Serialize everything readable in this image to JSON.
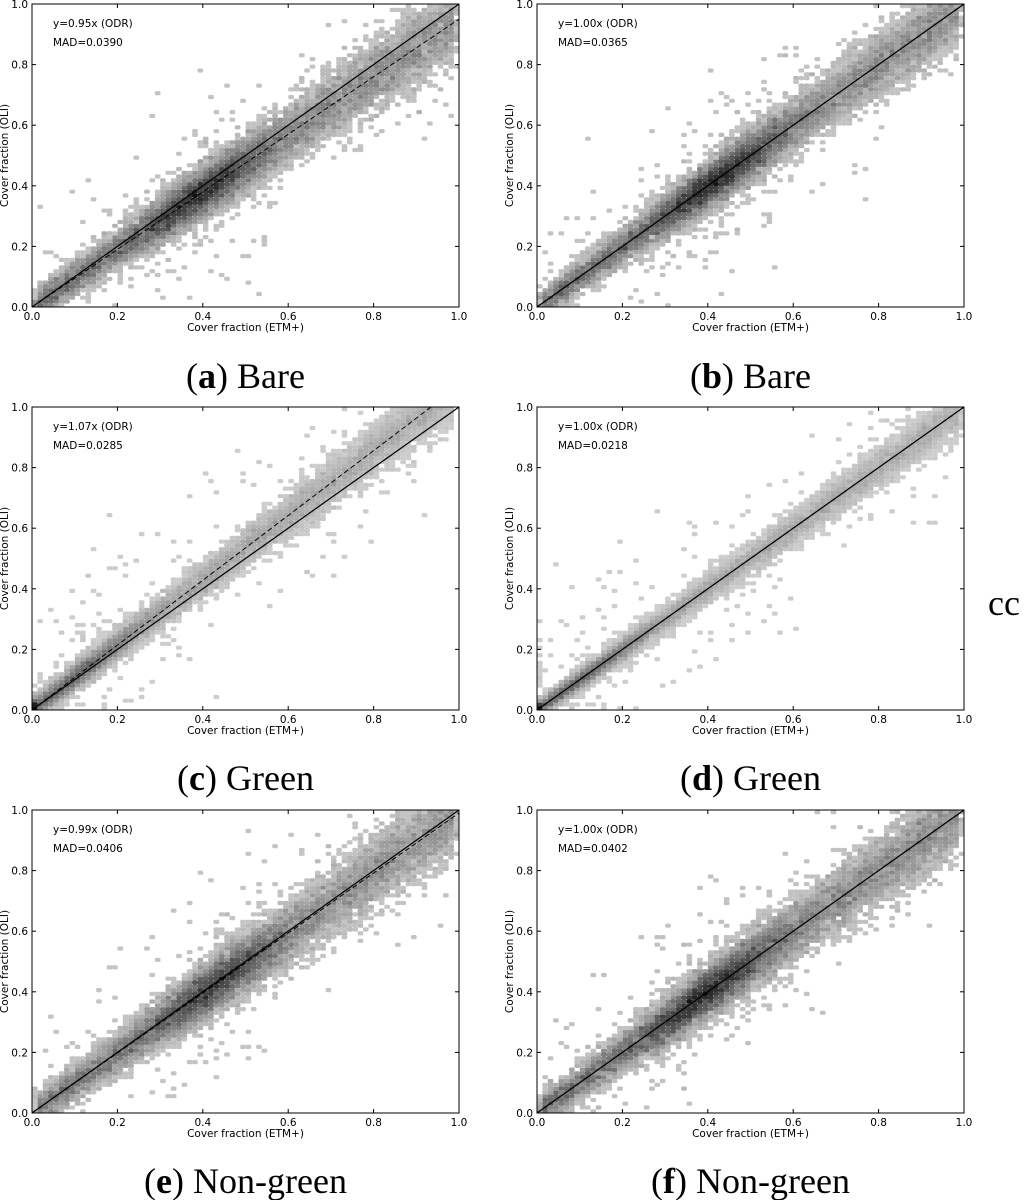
{
  "stray_text": "cc",
  "chart_data": [
    {
      "panel": "a",
      "type": "scatter",
      "caption_letter": "a",
      "caption_name": "Bare",
      "xlabel": "Cover fraction (ETM+)",
      "ylabel": "Cover fraction (OLI)",
      "xlim": [
        0,
        1
      ],
      "ylim": [
        0,
        1
      ],
      "x_ticks": [
        "0.0",
        "0.2",
        "0.4",
        "0.6",
        "0.8",
        "1.0"
      ],
      "y_ticks": [
        "0.0",
        "0.2",
        "0.4",
        "0.6",
        "0.8",
        "1.0"
      ],
      "annotation_fit": "y=0.95x (ODR)",
      "annotation_mad": "MAD=0.0390",
      "slope": 0.95,
      "mad": 0.039,
      "identity_line": true,
      "density_peak": [
        0.4,
        0.38
      ]
    },
    {
      "panel": "b",
      "type": "scatter",
      "caption_letter": "b",
      "caption_name": "Bare",
      "xlabel": "Cover fraction (ETM+)",
      "ylabel": "Cover fraction (OLI)",
      "xlim": [
        0,
        1
      ],
      "ylim": [
        0,
        1
      ],
      "x_ticks": [
        "0.0",
        "0.2",
        "0.4",
        "0.6",
        "0.8",
        "1.0"
      ],
      "y_ticks": [
        "0.0",
        "0.2",
        "0.4",
        "0.6",
        "0.8",
        "1.0"
      ],
      "annotation_fit": "y=1.00x (ODR)",
      "annotation_mad": "MAD=0.0365",
      "slope": 1.0,
      "mad": 0.0365,
      "identity_line": true,
      "density_peak": [
        0.42,
        0.44
      ]
    },
    {
      "panel": "c",
      "type": "scatter",
      "caption_letter": "c",
      "caption_name": "Green",
      "xlabel": "Cover fraction (ETM+)",
      "ylabel": "Cover fraction (OLI)",
      "xlim": [
        0,
        1
      ],
      "ylim": [
        0,
        1
      ],
      "x_ticks": [
        "0.0",
        "0.2",
        "0.4",
        "0.6",
        "0.8",
        "1.0"
      ],
      "y_ticks": [
        "0.0",
        "0.2",
        "0.4",
        "0.6",
        "0.8",
        "1.0"
      ],
      "annotation_fit": "y=1.07x (ODR)",
      "annotation_mad": "MAD=0.0285",
      "slope": 1.07,
      "mad": 0.0285,
      "identity_line": true,
      "density_peak": [
        0.1,
        0.12
      ]
    },
    {
      "panel": "d",
      "type": "scatter",
      "caption_letter": "d",
      "caption_name": "Green",
      "xlabel": "Cover fraction (ETM+)",
      "ylabel": "Cover fraction (OLI)",
      "xlim": [
        0,
        1
      ],
      "ylim": [
        0,
        1
      ],
      "x_ticks": [
        "0.0",
        "0.2",
        "0.4",
        "0.6",
        "0.8",
        "1.0"
      ],
      "y_ticks": [
        "0.0",
        "0.2",
        "0.4",
        "0.6",
        "0.8",
        "1.0"
      ],
      "annotation_fit": "y=1.00x (ODR)",
      "annotation_mad": "MAD=0.0218",
      "slope": 1.0,
      "mad": 0.0218,
      "identity_line": true,
      "density_peak": [
        0.1,
        0.1
      ]
    },
    {
      "panel": "e",
      "type": "scatter",
      "caption_letter": "e",
      "caption_name": "Non-green",
      "xlabel": "Cover fraction (ETM+)",
      "ylabel": "Cover fraction (OLI)",
      "xlim": [
        0,
        1
      ],
      "ylim": [
        0,
        1
      ],
      "x_ticks": [
        "0.0",
        "0.2",
        "0.4",
        "0.6",
        "0.8",
        "1.0"
      ],
      "y_ticks": [
        "0.0",
        "0.2",
        "0.4",
        "0.6",
        "0.8",
        "1.0"
      ],
      "annotation_fit": "y=0.99x (ODR)",
      "annotation_mad": "MAD=0.0406",
      "slope": 0.99,
      "mad": 0.0406,
      "identity_line": true,
      "density_peak": [
        0.43,
        0.43
      ]
    },
    {
      "panel": "f",
      "type": "scatter",
      "caption_letter": "f",
      "caption_name": "Non-green",
      "xlabel": "Cover fraction (ETM+)",
      "ylabel": "Cover fraction (OLI)",
      "xlim": [
        0,
        1
      ],
      "ylim": [
        0,
        1
      ],
      "x_ticks": [
        "0.0",
        "0.2",
        "0.4",
        "0.6",
        "0.8",
        "1.0"
      ],
      "y_ticks": [
        "0.0",
        "0.2",
        "0.4",
        "0.6",
        "0.8",
        "1.0"
      ],
      "annotation_fit": "y=1.00x (ODR)",
      "annotation_mad": "MAD=0.0402",
      "slope": 1.0,
      "mad": 0.0402,
      "identity_line": true,
      "density_peak": [
        0.4,
        0.4
      ]
    }
  ]
}
